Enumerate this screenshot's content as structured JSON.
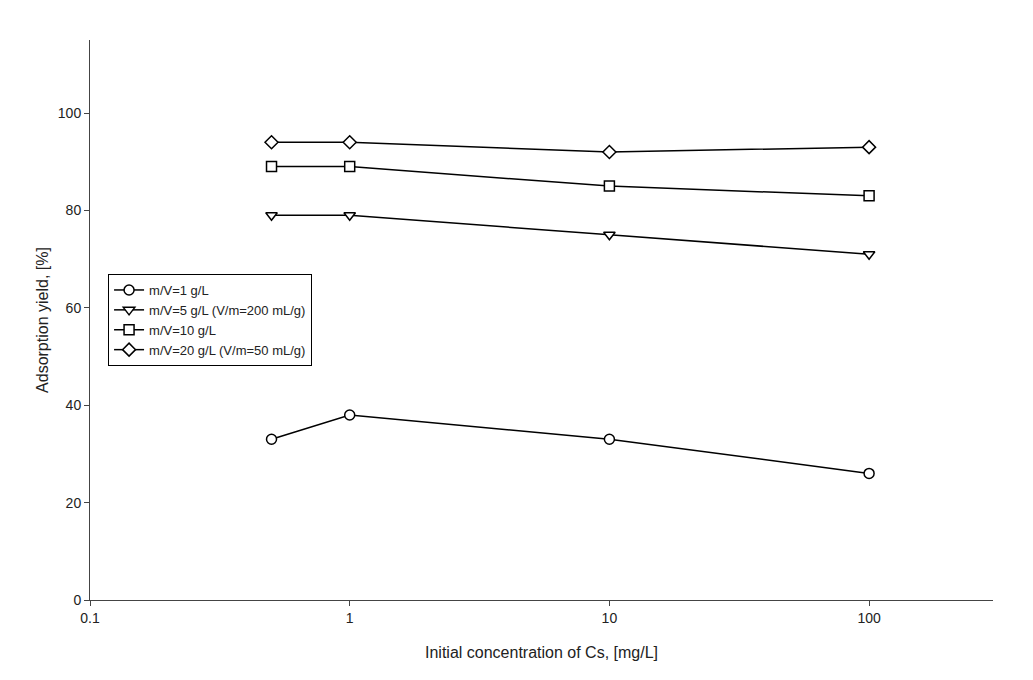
{
  "chart_data": {
    "type": "line",
    "x": [
      0.5,
      1,
      10,
      100
    ],
    "series": [
      {
        "name": "m/V=1 g/L",
        "color": "#000000",
        "marker": "circle",
        "values": [
          33,
          38,
          33,
          26
        ]
      },
      {
        "name": "m/V=5 g/L (V/m=200 mL/g)",
        "color": "#000000",
        "marker": "triangle-down",
        "values": [
          79,
          79,
          75,
          71
        ]
      },
      {
        "name": "m/V=10 g/L",
        "color": "#000000",
        "marker": "square",
        "values": [
          89,
          89,
          85,
          83
        ]
      },
      {
        "name": "m/V=20 g/L (V/m=50 mL/g)",
        "color": "#000000",
        "marker": "diamond",
        "values": [
          94,
          94,
          92,
          93
        ]
      }
    ],
    "xlabel": "Initial concentration of Cs, [mg/L]",
    "ylabel": "Adsorption yield, [%]",
    "log": "x",
    "xlim": [
      0.1,
      300
    ],
    "xticks": [
      0.1,
      1,
      10,
      100
    ],
    "ylim": [
      0,
      115
    ],
    "yticks": [
      0,
      20,
      40,
      60,
      80,
      100
    ],
    "grid": false,
    "legend": "center left"
  }
}
